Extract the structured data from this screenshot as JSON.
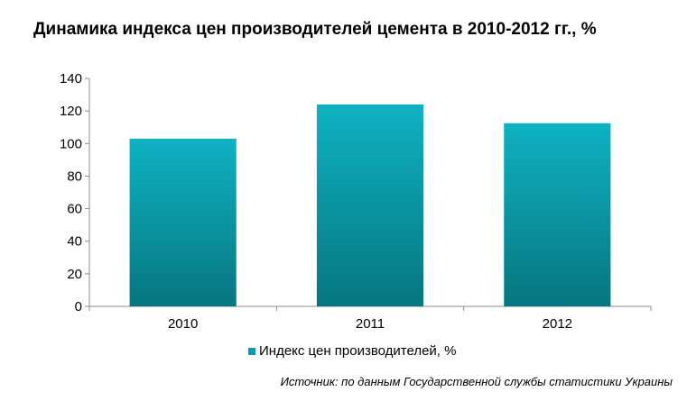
{
  "chart_data": {
    "type": "bar",
    "title": "Динамика индекса цен производителей цемента в 2010-2012 гг., %",
    "categories": [
      "2010",
      "2011",
      "2012"
    ],
    "series": [
      {
        "name": "Индекс цен производителей,  %",
        "values": [
          103,
          124,
          112.5
        ]
      }
    ],
    "ylim": [
      0,
      140
    ],
    "yticks": [
      "0",
      "20",
      "40",
      "60",
      "80",
      "100",
      "120",
      "140"
    ],
    "grid": false,
    "legend_position": "bottom",
    "source": "Источник: по данным Государственной службы статистики Украины",
    "colors": {
      "bar_top": "#0fb2c2",
      "bar_bottom": "#06767f",
      "legend_swatch": "#0a9aa8",
      "axis": "#8c8c8c"
    }
  }
}
